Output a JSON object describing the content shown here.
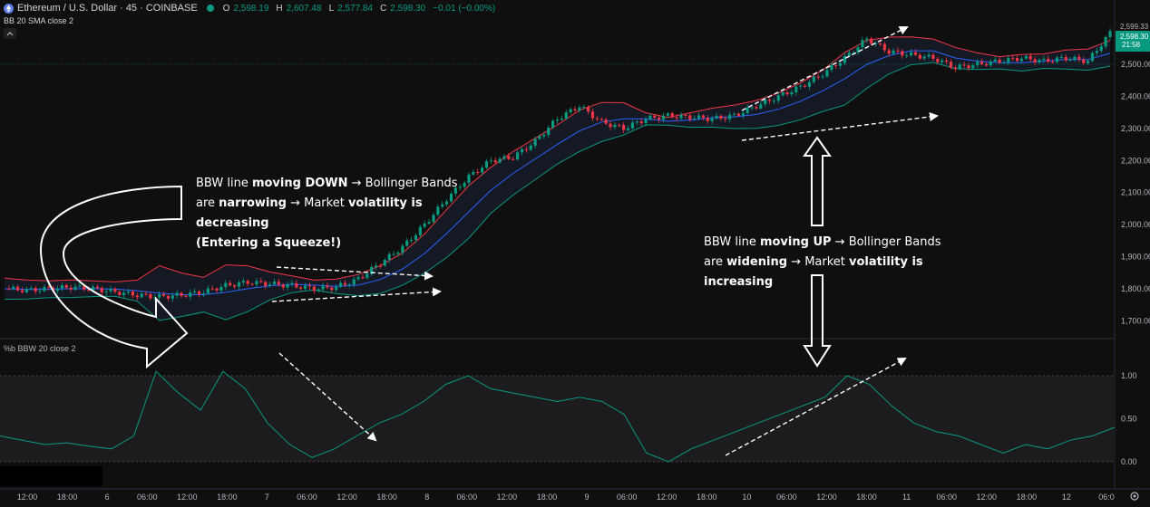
{
  "header": {
    "symbol_title": "Ethereum / U.S. Dollar · 45 · COINBASE",
    "ohlc": [
      {
        "label": "O",
        "value": "2,598.19"
      },
      {
        "label": "H",
        "value": "2,607.48"
      },
      {
        "label": "L",
        "value": "2,577.84"
      },
      {
        "label": "C",
        "value": "2,598.30"
      }
    ],
    "change": "−0.01 (−0.00%)",
    "indicator_bb": "BB 20 SMA close 2",
    "indicator_bbw": "%b BBW 20 close 2"
  },
  "price_axis": {
    "ticks": [
      "2,600.00",
      "2,500.00",
      "2,400.00",
      "2,300.00",
      "2,200.00",
      "2,100.00",
      "2,000.00",
      "1,900.00",
      "1,800.00",
      "1,700.00"
    ],
    "top_label": "2,599.33",
    "current_price": "2,598.30",
    "countdown": "21:58"
  },
  "bbw_axis": {
    "ticks": [
      "1.00",
      "0.50",
      "0.00"
    ]
  },
  "time_axis": {
    "labels": [
      "12:00",
      "18:00",
      "6",
      "06:00",
      "12:00",
      "18:00",
      "7",
      "06:00",
      "12:00",
      "18:00",
      "8",
      "06:00",
      "12:00",
      "18:00",
      "9",
      "06:00",
      "12:00",
      "18:00",
      "10",
      "06:00",
      "12:00",
      "18:00",
      "11",
      "06:00",
      "12:00",
      "18:00",
      "12",
      "06:0"
    ]
  },
  "annotations": {
    "left": {
      "line1_a": "BBW line ",
      "line1_b": "moving DOWN",
      "line1_c": " → Bollinger Bands",
      "line2_a": "are ",
      "line2_b": "narrowing",
      "line2_c": " → Market ",
      "line2_d": "volatility is decreasing",
      "line3": "(Entering a Squeeze!)"
    },
    "right": {
      "line1_a": "BBW line ",
      "line1_b": "moving UP",
      "line1_c": " → Bollinger Bands",
      "line2_a": "are ",
      "line2_b": "widening",
      "line2_c": " → Market ",
      "line2_d": "volatility is increasing"
    }
  },
  "colors": {
    "background": "#0f0f0f",
    "up": "#089981",
    "down": "#f23645",
    "upper_band": "#f23645",
    "basis": "#2962ff",
    "lower_band": "#089981",
    "bbw_line": "#089981",
    "annotation": "#ffffff"
  },
  "chart_data": {
    "type": "line",
    "series": [
      {
        "values": [
          1800,
          1795,
          1800,
          1805,
          1800,
          1790,
          1780,
          1775,
          1780,
          1790,
          1810,
          1820,
          1815,
          1810,
          1800,
          1805,
          1830,
          1880,
          1930,
          2000,
          2080,
          2150,
          2200,
          2210,
          2260,
          2330,
          2370,
          2320,
          2300,
          2330,
          2340,
          2335,
          2330,
          2340,
          2370,
          2400,
          2430,
          2470,
          2520,
          2580,
          2540,
          2530,
          2520,
          2490,
          2500,
          2510,
          2520,
          2510,
          2520,
          2510,
          2598
        ]
      },
      {
        "values": [
          0.3,
          0.25,
          0.2,
          0.22,
          0.18,
          0.15,
          0.3,
          1.05,
          0.8,
          0.6,
          1.05,
          0.85,
          0.45,
          0.2,
          0.05,
          0.15,
          0.3,
          0.45,
          0.55,
          0.7,
          0.9,
          1.0,
          0.85,
          0.8,
          0.75,
          0.7,
          0.75,
          0.7,
          0.55,
          0.1,
          0.0,
          0.15,
          0.25,
          0.35,
          0.45,
          0.55,
          0.65,
          0.75,
          1.0,
          0.9,
          0.65,
          0.45,
          0.35,
          0.3,
          0.2,
          0.1,
          0.2,
          0.15,
          0.25,
          0.3,
          0.4
        ]
      }
    ],
    "ylim": [
      1650,
      2650
    ]
  }
}
